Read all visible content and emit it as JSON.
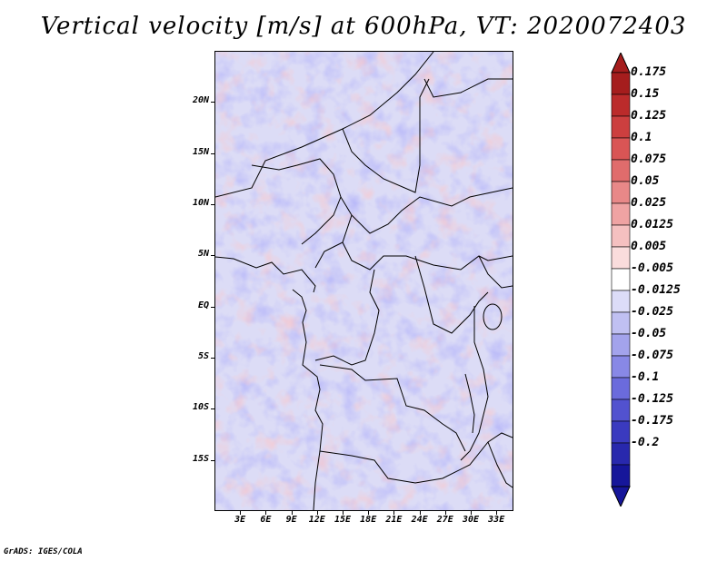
{
  "title": "Vertical velocity [m/s] at 600hPa, VT: 2020072403",
  "footer": "GrADS: IGES/COLA",
  "map": {
    "lon_range": [
      0,
      35
    ],
    "lat_range": [
      -20,
      25
    ],
    "lat_ticks": [
      {
        "value": 20,
        "label": "20N"
      },
      {
        "value": 15,
        "label": "15N"
      },
      {
        "value": 10,
        "label": "10N"
      },
      {
        "value": 5,
        "label": "5N"
      },
      {
        "value": 0,
        "label": "EQ"
      },
      {
        "value": -5,
        "label": "5S"
      },
      {
        "value": -10,
        "label": "10S"
      },
      {
        "value": -15,
        "label": "15S"
      }
    ],
    "lon_ticks": [
      {
        "value": 3,
        "label": "3E"
      },
      {
        "value": 6,
        "label": "6E"
      },
      {
        "value": 9,
        "label": "9E"
      },
      {
        "value": 12,
        "label": "12E"
      },
      {
        "value": 15,
        "label": "15E"
      },
      {
        "value": 18,
        "label": "18E"
      },
      {
        "value": 21,
        "label": "21E"
      },
      {
        "value": 24,
        "label": "24E"
      },
      {
        "value": 27,
        "label": "27E"
      },
      {
        "value": 30,
        "label": "30E"
      },
      {
        "value": 33,
        "label": "33E"
      }
    ]
  },
  "colorbar": {
    "labels": [
      "0.175",
      "0.15",
      "0.125",
      "0.1",
      "0.075",
      "0.05",
      "0.025",
      "0.0125",
      "0.005",
      "-0.005",
      "-0.0125",
      "-0.025",
      "-0.05",
      "-0.075",
      "-0.1",
      "-0.125",
      "-0.175",
      "-0.2"
    ],
    "colors": [
      "#a51d1d",
      "#bb2b2b",
      "#cc3f3f",
      "#d95555",
      "#e06c6c",
      "#e88888",
      "#efa3a3",
      "#f5c0c0",
      "#fadcdc",
      "#ffffff",
      "#dcdcf8",
      "#c0c0f2",
      "#a3a3ec",
      "#8888e6",
      "#6b6bdc",
      "#5252cf",
      "#3a3abf",
      "#2828ad",
      "#16169a"
    ],
    "top_cap_color": "#a51d1d",
    "bottom_cap_color": "#16169a"
  }
}
